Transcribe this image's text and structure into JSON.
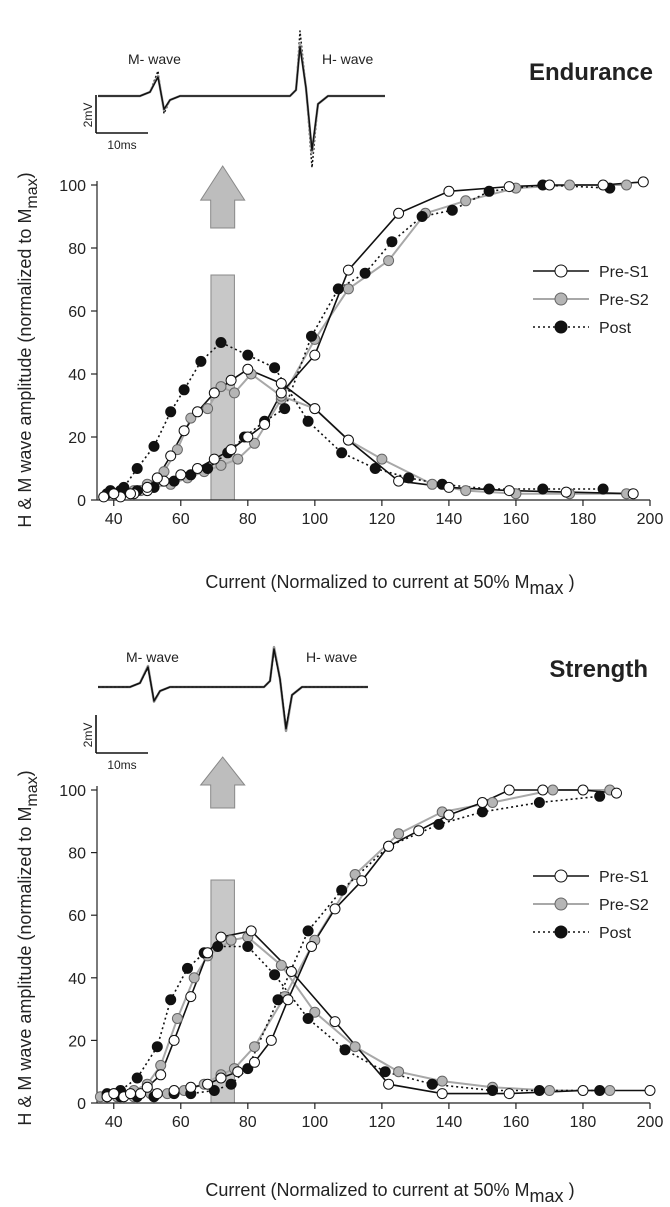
{
  "chart_data": [
    {
      "type": "line",
      "title": "Endurance",
      "xlabel_main": "Current (Normalized to current at 50% M",
      "xlabel_sub": "max",
      "xlabel_end": " )",
      "ylabel_main": "H & M wave amplitude (normalized to M",
      "ylabel_sub": "max",
      "ylabel_end": ")",
      "xlim": [
        35,
        200
      ],
      "ylim": [
        0,
        100
      ],
      "xticks": [
        40,
        60,
        80,
        100,
        120,
        140,
        160,
        180,
        200
      ],
      "yticks": [
        0,
        20,
        40,
        60,
        80,
        100
      ],
      "grid": false,
      "legend": "right-middle",
      "shaded_band": [
        69,
        76
      ],
      "inset": {
        "m_label": "M- wave",
        "h_label": "H- wave",
        "scale_y": "2mV",
        "scale_x": "10ms"
      },
      "series": [
        {
          "name": "Pre-S1",
          "style": "open-solid-black",
          "m_wave": {
            "x": [
              37,
              42,
              46,
              50,
              55,
              60,
              65,
              70,
              75,
              80,
              85,
              90,
              100,
              110,
              125,
              140,
              158,
              170,
              186,
              198
            ],
            "y": [
              1,
              1,
              2,
              3,
              6,
              8,
              10,
              13,
              16,
              20,
              24,
              34,
              46,
              73,
              91,
              98,
              99.5,
              100,
              100,
              101
            ]
          },
          "h_wave": {
            "x": [
              40,
              45,
              50,
              53,
              57,
              61,
              65,
              70,
              75,
              80,
              90,
              100,
              110,
              125,
              140,
              158,
              175,
              195
            ],
            "y": [
              2,
              2,
              4,
              7,
              14,
              22,
              28,
              34,
              38,
              41.5,
              37,
              29,
              19,
              6,
              4,
              3,
              2.5,
              2
            ]
          }
        },
        {
          "name": "Pre-S2",
          "style": "gray-solid-gray",
          "m_wave": {
            "x": [
              38,
              43,
              48,
              52,
              57,
              62,
              67,
              72,
              77,
              82,
              90,
              100,
              110,
              122,
              133,
              145,
              160,
              176,
              193
            ],
            "y": [
              2,
              3,
              3,
              4,
              5,
              7,
              9,
              11,
              13,
              18,
              32,
              51,
              67,
              76,
              91,
              95,
              99,
              100,
              100
            ]
          },
          "h_wave": {
            "x": [
              42,
              46,
              50,
              55,
              59,
              63,
              68,
              72,
              76,
              81,
              90,
              100,
              110,
              120,
              135,
              145,
              160,
              176,
              193
            ],
            "y": [
              3,
              3,
              5,
              9,
              16,
              26,
              29,
              36,
              34,
              40,
              33,
              29,
              19,
              13,
              5,
              3,
              2,
              2,
              2
            ]
          }
        },
        {
          "name": "Post",
          "style": "filled-dotted-black",
          "m_wave": {
            "x": [
              38,
              42,
              47,
              52,
              58,
              63,
              68,
              74,
              79,
              85,
              91,
              99,
              107,
              115,
              123,
              132,
              141,
              152,
              168,
              188
            ],
            "y": [
              2,
              3,
              3,
              4,
              6,
              8,
              10,
              15,
              20,
              25,
              29,
              52,
              67,
              72,
              82,
              90,
              92,
              98,
              100,
              99
            ]
          },
          "h_wave": {
            "x": [
              39,
              43,
              47,
              52,
              57,
              61,
              66,
              72,
              80,
              88,
              98,
              108,
              118,
              128,
              138,
              152,
              168,
              186
            ],
            "y": [
              3,
              4,
              10,
              17,
              28,
              35,
              44,
              50,
              46,
              42,
              25,
              15,
              10,
              7,
              5,
              3.5,
              3.5,
              3.5
            ]
          }
        }
      ]
    },
    {
      "type": "line",
      "title": "Strength",
      "xlabel_main": "Current (Normalized to current at 50% M",
      "xlabel_sub": "max",
      "xlabel_end": " )",
      "ylabel_main": "H & M wave amplitude (normalized to M",
      "ylabel_sub": "max",
      "ylabel_end": ")",
      "xlim": [
        35,
        200
      ],
      "ylim": [
        0,
        100
      ],
      "xticks": [
        40,
        60,
        80,
        100,
        120,
        140,
        160,
        180,
        200
      ],
      "yticks": [
        0,
        20,
        40,
        60,
        80,
        100
      ],
      "grid": false,
      "legend": "right-middle",
      "shaded_band": [
        69,
        76
      ],
      "inset": {
        "m_label": "M- wave",
        "h_label": "H- wave",
        "scale_y": "2mV",
        "scale_x": "10ms"
      },
      "series": [
        {
          "name": "Pre-S1",
          "style": "open-solid-black",
          "m_wave": {
            "x": [
              38,
              43,
              48,
              53,
              58,
              63,
              68,
              72,
              77,
              82,
              87,
              92,
              99,
              106,
              114,
              122,
              131,
              140,
              150,
              158,
              168,
              180,
              190
            ],
            "y": [
              2,
              2,
              3,
              3,
              4,
              5,
              6,
              8,
              10,
              13,
              20,
              33,
              50,
              62,
              71,
              82,
              87,
              92,
              96,
              100,
              100,
              100,
              99
            ]
          },
          "h_wave": {
            "x": [
              40,
              45,
              50,
              54,
              58,
              63,
              68,
              72,
              81,
              93,
              106,
              122,
              138,
              158,
              180,
              200
            ],
            "y": [
              3,
              3,
              5,
              9,
              20,
              34,
              48,
              53,
              55,
              42,
              26,
              6,
              3,
              3,
              4,
              4
            ]
          }
        },
        {
          "name": "Pre-S2",
          "style": "gray-solid-gray",
          "m_wave": {
            "x": [
              36,
              41,
              46,
              51,
              56,
              61,
              67,
              72,
              76,
              82,
              91,
              100,
              112,
              125,
              138,
              153,
              171,
              188
            ],
            "y": [
              2,
              2,
              2,
              3,
              3,
              4,
              6,
              9,
              11,
              18,
              34,
              52,
              73,
              86,
              93,
              96,
              100,
              100
            ]
          },
          "h_wave": {
            "x": [
              40,
              46,
              50,
              54,
              59,
              64,
              68,
              75,
              80,
              90,
              100,
              112,
              125,
              138,
              153,
              170,
              188
            ],
            "y": [
              3,
              4,
              6,
              12,
              27,
              40,
              47,
              52,
              53,
              44,
              29,
              18,
              10,
              7,
              5,
              4,
              4
            ]
          }
        },
        {
          "name": "Post",
          "style": "filled-dotted-black",
          "m_wave": {
            "x": [
              38,
              42,
              47,
              52,
              58,
              63,
              70,
              75,
              80,
              89,
              98,
              108,
              122,
              137,
              150,
              167,
              185
            ],
            "y": [
              2,
              2,
              2,
              2,
              3,
              3,
              4,
              6,
              11,
              33,
              55,
              68,
              82,
              89,
              93,
              96,
              98
            ]
          },
          "h_wave": {
            "x": [
              38,
              42,
              47,
              53,
              57,
              62,
              67,
              71,
              80,
              88,
              98,
              109,
              121,
              135,
              153,
              167,
              185
            ],
            "y": [
              3,
              4,
              8,
              18,
              33,
              43,
              48,
              50,
              50,
              41,
              27,
              17,
              10,
              6,
              4,
              4,
              4
            ]
          }
        }
      ]
    }
  ]
}
